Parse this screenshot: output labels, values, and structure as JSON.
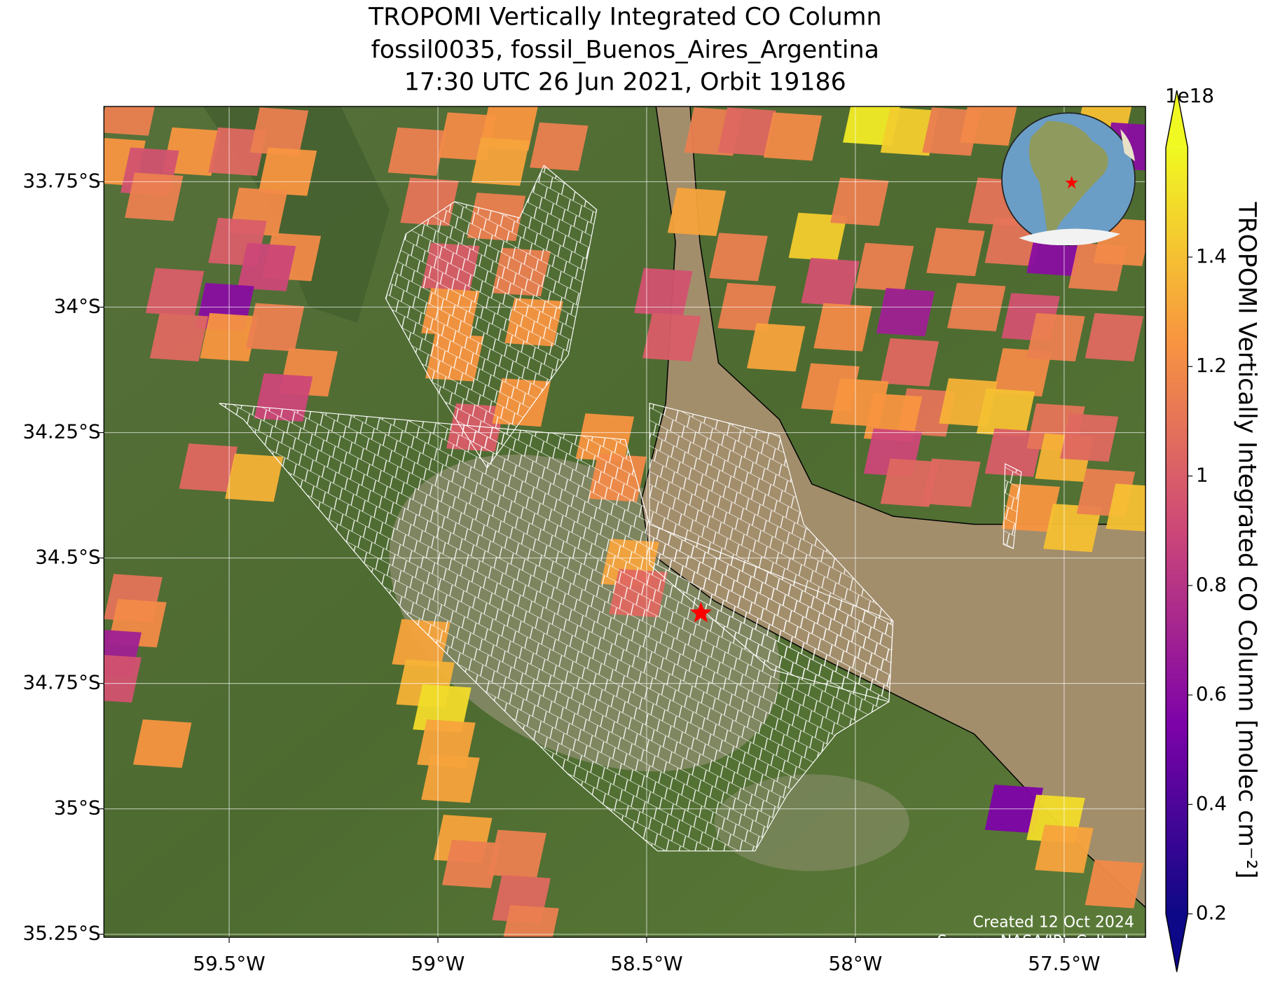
{
  "chart_data": {
    "type": "map",
    "title": [
      "TROPOMI Vertically Integrated CO Column",
      "fossil0035, fossil_Buenos_Aires_Argentina",
      "17:30 UTC 26 Jun 2021, Orbit 19186"
    ],
    "xlim": [
      -59.8,
      -57.305
    ],
    "ylim": [
      -35.256,
      -33.6
    ],
    "xticks": [
      {
        "value": -59.5,
        "label": "59.5°W"
      },
      {
        "value": -59,
        "label": "59°W"
      },
      {
        "value": -58.5,
        "label": "58.5°W"
      },
      {
        "value": -58,
        "label": "58°W"
      },
      {
        "value": -57.5,
        "label": "57.5°W"
      }
    ],
    "yticks": [
      {
        "value": -33.75,
        "label": "33.75°S"
      },
      {
        "value": -34,
        "label": "34°S"
      },
      {
        "value": -34.25,
        "label": "34.25°S"
      },
      {
        "value": -34.5,
        "label": "34.5°S"
      },
      {
        "value": -34.75,
        "label": "34.75°S"
      },
      {
        "value": -35,
        "label": "35°S"
      },
      {
        "value": -35.25,
        "label": "35.25°S"
      }
    ],
    "grid": true,
    "pixels": {
      "lon": [
        -59.74,
        -59.59,
        -59.48,
        -59.38,
        -59.36,
        -59.77,
        -59.69,
        -59.68,
        -59.43,
        -59.35,
        -59.48,
        -59.41,
        -59.51,
        -59.63,
        -59.62,
        -59.5,
        -59.39,
        -59.31,
        -59.37,
        -59.55,
        -59.44,
        -59.73,
        -59.72,
        -59.78,
        -59.78,
        -59.66,
        -59.04,
        -59.03,
        -58.99,
        -58.98,
        -58.97,
        -58.94,
        -58.92,
        -58.81,
        -58.8,
        -58.78,
        -59.05,
        -59.02,
        -58.97,
        -58.97,
        -58.96,
        -58.91,
        -58.8,
        -58.77,
        -58.8,
        -58.93,
        -58.83,
        -58.85,
        -58.71,
        -58.86,
        -58.6,
        -58.57,
        -58.54,
        -58.52,
        -58.46,
        -58.44,
        -58.34,
        -58.38,
        -58.26,
        -58.15,
        -57.96,
        -57.87,
        -57.77,
        -57.68,
        -57.4,
        -57.34,
        -58.28,
        -58.26,
        -58.19,
        -58.09,
        -58.06,
        -57.99,
        -58.03,
        -57.93,
        -57.88,
        -57.87,
        -57.83,
        -57.76,
        -57.71,
        -57.66,
        -57.62,
        -57.58,
        -57.6,
        -57.52,
        -57.52,
        -57.42,
        -57.38,
        -57.36,
        -58.06,
        -57.99,
        -57.91,
        -57.91,
        -57.87,
        -57.77,
        -57.73,
        -57.64,
        -57.62,
        -57.52,
        -57.5,
        -57.44,
        -57.58,
        -57.48,
        -57.4,
        -57.33,
        -57.62,
        -57.52,
        -57.5,
        -57.38
      ],
      "lat": [
        -33.61,
        -33.69,
        -33.69,
        -33.65,
        -33.73,
        -33.71,
        -33.73,
        -33.78,
        -33.81,
        -33.9,
        -33.87,
        -33.92,
        -34.0,
        -33.97,
        -34.06,
        -34.06,
        -34.04,
        -34.13,
        -34.18,
        -34.32,
        -34.34,
        -34.58,
        -34.63,
        -34.69,
        -34.74,
        -34.87,
        -34.67,
        -34.75,
        -34.8,
        -34.87,
        -34.94,
        -35.06,
        -35.11,
        -35.09,
        -35.18,
        -35.24,
        -33.69,
        -33.79,
        -33.92,
        -34.01,
        -34.1,
        -34.24,
        -34.19,
        -34.03,
        -33.93,
        -33.66,
        -33.64,
        -33.71,
        -33.68,
        -33.82,
        -34.26,
        -34.34,
        -34.51,
        -34.57,
        -33.97,
        -34.06,
        -33.65,
        -33.81,
        -33.65,
        -33.66,
        -33.63,
        -33.65,
        -33.65,
        -33.63,
        -33.61,
        -33.68,
        -33.9,
        -34.0,
        -34.08,
        -33.86,
        -33.95,
        -33.79,
        -34.04,
        -33.92,
        -34.01,
        -34.11,
        -34.21,
        -33.89,
        -34.0,
        -33.79,
        -33.87,
        -34.02,
        -34.13,
        -34.06,
        -33.89,
        -33.92,
        -34.06,
        -33.87,
        -34.16,
        -34.19,
        -34.22,
        -34.29,
        -34.35,
        -34.35,
        -34.19,
        -34.21,
        -34.29,
        -34.24,
        -34.3,
        -34.26,
        -34.4,
        -34.44,
        -34.37,
        -34.4,
        -35.0,
        -35.02,
        -35.08,
        -35.15
      ],
      "values": [
        1.15,
        1.25,
        1.05,
        1.15,
        1.25,
        1.25,
        0.95,
        1.15,
        1.2,
        1.2,
        1.0,
        0.9,
        0.6,
        1.0,
        1.05,
        1.25,
        1.15,
        1.2,
        0.9,
        1.05,
        1.35,
        1.1,
        1.2,
        0.7,
        0.95,
        1.25,
        1.3,
        1.35,
        1.5,
        1.3,
        1.3,
        1.3,
        1.15,
        1.15,
        1.05,
        1.15,
        1.15,
        1.1,
        1.0,
        1.25,
        1.25,
        1.0,
        1.25,
        1.25,
        1.15,
        1.2,
        1.25,
        1.3,
        1.15,
        1.15,
        1.25,
        1.2,
        1.3,
        1.05,
        0.95,
        1.0,
        1.15,
        1.3,
        1.05,
        1.2,
        1.55,
        1.45,
        1.15,
        1.2,
        1.4,
        0.6,
        1.15,
        1.15,
        1.3,
        1.45,
        0.95,
        1.15,
        1.2,
        1.15,
        0.7,
        1.05,
        1.1,
        1.15,
        1.15,
        1.1,
        1.1,
        0.95,
        1.2,
        1.15,
        0.6,
        1.15,
        1.05,
        1.2,
        1.2,
        1.25,
        1.25,
        0.9,
        1.05,
        1.05,
        1.35,
        1.4,
        1.0,
        1.1,
        1.35,
        1.05,
        1.25,
        1.4,
        1.15,
        1.4,
        0.55,
        1.5,
        1.3,
        1.2
      ]
    },
    "site": {
      "lon": -58.37,
      "lat": -34.61,
      "color": "#ff0000"
    },
    "colorbar": {
      "label": "TROPOMI Vertically Integrated CO Column [molec cm⁻²]",
      "exponent": "1e18",
      "clim": [
        0.2,
        1.6
      ],
      "ticks": [
        0.2,
        0.4,
        0.6,
        0.8,
        1.0,
        1.2,
        1.4
      ],
      "colors": [
        "#0d0887",
        "#7e03a8",
        "#cc4778",
        "#f89540",
        "#f0f921"
      ]
    },
    "annotations": [
      "Created 12 Oct 2024",
      "Source: NASA/JPL-Caltech"
    ]
  }
}
